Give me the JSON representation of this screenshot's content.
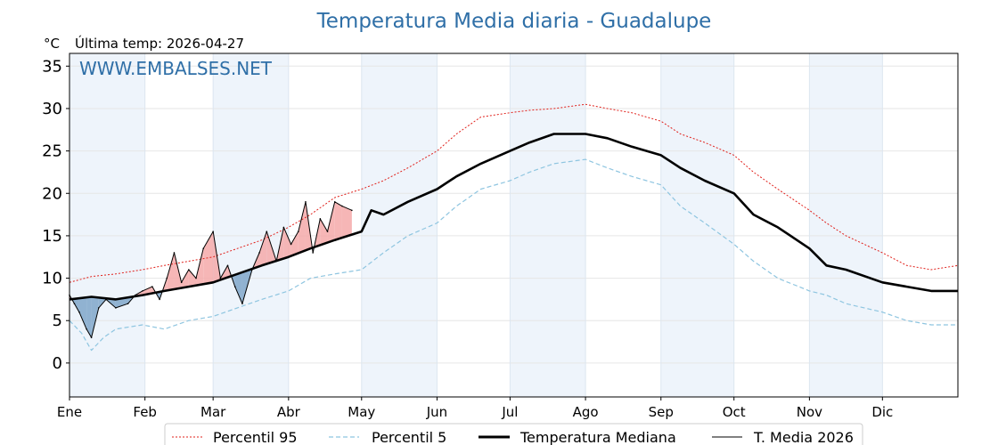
{
  "chart_data": {
    "type": "line",
    "title": "Temperatura Media diaria - Guadalupe",
    "unit_label": "°C",
    "last_temp_label": "Última temp: 2026-04-27",
    "watermark": "WWW.EMBALSES.NET",
    "ylim": [
      -4,
      36.5
    ],
    "yticks": [
      0,
      5,
      10,
      15,
      20,
      25,
      30,
      35
    ],
    "xlim": [
      1,
      366
    ],
    "month_labels": [
      "Ene",
      "Feb",
      "Mar",
      "Abr",
      "May",
      "Jun",
      "Jul",
      "Ago",
      "Sep",
      "Oct",
      "Nov",
      "Dic"
    ],
    "month_start_days": [
      1,
      32,
      60,
      91,
      121,
      152,
      182,
      213,
      244,
      274,
      305,
      335,
      366
    ],
    "shaded_months": [
      "Ene",
      "Mar",
      "May",
      "Jul",
      "Sep",
      "Nov"
    ],
    "grid": true,
    "legend_position": "bottom",
    "colors": {
      "p95": "#e0201b",
      "p5": "#8ec5e0",
      "median": "#000000",
      "current": "#000000",
      "above_fill": "#f4a9a9",
      "below_fill": "#7fa6c9",
      "shade": "#eef4fb"
    },
    "series": [
      {
        "name": "Percentil 95",
        "x": [
          1,
          10,
          20,
          31,
          40,
          50,
          60,
          70,
          80,
          91,
          100,
          110,
          121,
          130,
          140,
          152,
          160,
          170,
          182,
          190,
          200,
          213,
          222,
          232,
          244,
          252,
          262,
          274,
          282,
          292,
          305,
          312,
          320,
          335,
          345,
          355,
          366
        ],
        "values": [
          9.5,
          10.2,
          10.5,
          11.0,
          11.5,
          12.0,
          12.5,
          13.5,
          14.5,
          16.0,
          17.5,
          19.5,
          20.5,
          21.5,
          23.0,
          25.0,
          27.0,
          29.0,
          29.5,
          29.8,
          30.0,
          30.5,
          30.0,
          29.5,
          28.5,
          27.0,
          26.0,
          24.5,
          22.5,
          20.5,
          18.0,
          16.5,
          15.0,
          13.0,
          11.5,
          11.0,
          11.5
        ]
      },
      {
        "name": "Percentil 5",
        "x": [
          1,
          6,
          10,
          15,
          20,
          31,
          40,
          50,
          60,
          70,
          80,
          91,
          100,
          110,
          121,
          130,
          140,
          152,
          160,
          170,
          182,
          190,
          200,
          213,
          222,
          232,
          244,
          252,
          262,
          274,
          282,
          292,
          305,
          312,
          320,
          335,
          345,
          355,
          366
        ],
        "values": [
          5.0,
          3.5,
          1.5,
          3.0,
          4.0,
          4.5,
          4.0,
          5.0,
          5.5,
          6.5,
          7.5,
          8.5,
          10.0,
          10.5,
          11.0,
          13.0,
          15.0,
          16.5,
          18.5,
          20.5,
          21.5,
          22.5,
          23.5,
          24.0,
          23.0,
          22.0,
          21.0,
          18.5,
          16.5,
          14.0,
          12.0,
          10.0,
          8.5,
          8.0,
          7.0,
          6.0,
          5.0,
          4.5,
          4.5
        ]
      },
      {
        "name": "Temperatura Mediana",
        "x": [
          1,
          10,
          20,
          31,
          40,
          50,
          60,
          70,
          80,
          91,
          100,
          110,
          121,
          125,
          130,
          140,
          152,
          160,
          170,
          182,
          190,
          200,
          213,
          222,
          232,
          244,
          252,
          262,
          274,
          282,
          292,
          305,
          312,
          320,
          335,
          345,
          355,
          366
        ],
        "values": [
          7.5,
          7.8,
          7.5,
          8.0,
          8.5,
          9.0,
          9.5,
          10.5,
          11.5,
          12.5,
          13.5,
          14.5,
          15.5,
          18.0,
          17.5,
          19.0,
          20.5,
          22.0,
          23.5,
          25.0,
          26.0,
          27.0,
          27.0,
          26.5,
          25.5,
          24.5,
          23.0,
          21.5,
          20.0,
          17.5,
          16.0,
          13.5,
          11.5,
          11.0,
          9.5,
          9.0,
          8.5,
          8.5
        ]
      },
      {
        "name": "T. Media 2026",
        "x": [
          1,
          3,
          5,
          8,
          10,
          13,
          16,
          20,
          25,
          28,
          31,
          35,
          38,
          41,
          44,
          47,
          50,
          53,
          56,
          60,
          63,
          66,
          69,
          72,
          76,
          79,
          82,
          86,
          89,
          92,
          95,
          98,
          101,
          104,
          107,
          110,
          113,
          117
        ],
        "values": [
          8.0,
          7.0,
          6.0,
          4.0,
          3.0,
          6.5,
          7.5,
          6.5,
          7.0,
          8.0,
          8.5,
          9.0,
          7.5,
          10.0,
          13.0,
          9.5,
          11.0,
          10.0,
          13.5,
          15.5,
          10.0,
          11.5,
          9.0,
          7.0,
          11.0,
          13.0,
          15.5,
          12.0,
          16.0,
          14.0,
          15.5,
          19.0,
          13.0,
          17.0,
          15.5,
          19.0,
          18.5,
          18.0
        ]
      }
    ]
  }
}
